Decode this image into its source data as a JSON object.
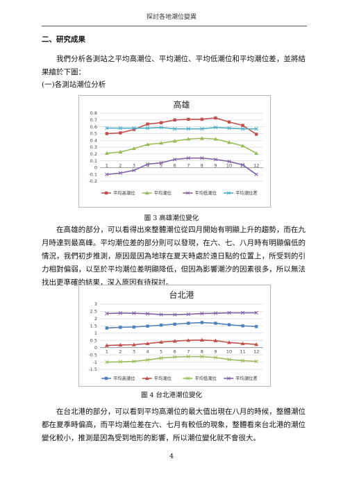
{
  "header": {
    "title": "探討各地潮位變異"
  },
  "section": {
    "heading": "二、研究成果"
  },
  "intro": {
    "text": "我們分析各測站之平均高潮位、平均潮位、平均低潮位和平均潮位差，並將結果繪於下圖："
  },
  "subsection": {
    "heading": "(一)各測站潮位分析"
  },
  "figures": [
    {
      "caption": "圖 3  高雄潮位變化"
    },
    {
      "caption": "圖 4  台北港潮位變化"
    }
  ],
  "paragraphs": [
    "在高雄的部分，可以看得出來整體潮位從四月開始有明顯上升的趨勢，而在九月時達到最高峰。平均潮位差的部分則可以發現，在六、七、八月時有明顯偏低的情況，我們初步推測，原因是因為地球在夏天時處於遠日點的位置上，所受到的引力相對偏弱，以至於平均潮位差明顯降低，但因為影響潮汐的因素很多，所以無法找出更準確的結果，深入原因有待探討。",
    "在台北港的部分，可以看到平均高潮位的最大值出現在八月的時候，整體潮位都在夏季時偏高，而平均潮位差在六、七月有較低的現象，整體看來台北港的潮位變化較小，推測是因為受到地形的影響，所以潮位變化就不會很大。"
  ],
  "page_number": "4",
  "colors": {
    "high": "#c0504d",
    "mean": "#9bbb59",
    "low": "#8064a2",
    "range": "#4bacc6",
    "range2": "#7e60a2",
    "high2": "#4f81bd"
  },
  "chart_data": [
    {
      "type": "line",
      "title": "高雄",
      "categories": [
        "1",
        "2",
        "3",
        "4",
        "5",
        "6",
        "7",
        "8",
        "9",
        "10",
        "11",
        "12"
      ],
      "ylim": [
        -0.2,
        0.8
      ],
      "yticks": [
        "0.8",
        "0.7",
        "0.6",
        "0.5",
        "0.4",
        "0.3",
        "0.2",
        "0.1",
        "0",
        "-0.1",
        "-0.2"
      ],
      "grid": true,
      "legend_position": "bottom",
      "series": [
        {
          "name": "平均高潮位",
          "color": "#c0504d",
          "marker": "square",
          "values": [
            0.5,
            0.51,
            0.56,
            0.64,
            0.66,
            0.7,
            0.71,
            0.71,
            0.73,
            0.67,
            0.62,
            0.49
          ]
        },
        {
          "name": "平均潮位",
          "color": "#9bbb59",
          "marker": "triangle",
          "values": [
            0.21,
            0.23,
            0.28,
            0.34,
            0.36,
            0.39,
            0.42,
            0.43,
            0.42,
            0.37,
            0.32,
            0.21
          ]
        },
        {
          "name": "平均低潮位",
          "color": "#8064a2",
          "marker": "x",
          "values": [
            -0.1,
            -0.08,
            -0.04,
            0.05,
            0.07,
            0.12,
            0.14,
            0.14,
            0.12,
            0.09,
            0.04,
            -0.1
          ]
        },
        {
          "name": "平均潮位差",
          "color": "#4bacc6",
          "marker": "x",
          "values": [
            0.58,
            0.58,
            0.58,
            0.58,
            0.59,
            0.57,
            0.57,
            0.57,
            0.59,
            0.58,
            0.57,
            0.57
          ]
        }
      ]
    },
    {
      "type": "line",
      "title": "台北港",
      "categories": [
        "1",
        "2",
        "3",
        "4",
        "5",
        "6",
        "7",
        "8",
        "9",
        "10",
        "11",
        "12"
      ],
      "ylim": [
        -1.5,
        3
      ],
      "yticks": [
        "3",
        "2.5",
        "2",
        "1.5",
        "1",
        "0.5",
        "0",
        "-0.5",
        "-1",
        "-1.5"
      ],
      "grid": true,
      "legend_position": "bottom",
      "series": [
        {
          "name": "平均高潮位",
          "color": "#4f81bd",
          "marker": "square",
          "values": [
            1.35,
            1.4,
            1.42,
            1.48,
            1.55,
            1.62,
            1.68,
            1.73,
            1.68,
            1.58,
            1.5,
            1.45
          ]
        },
        {
          "name": "平均潮位",
          "color": "#c0504d",
          "marker": "triangle",
          "values": [
            0.15,
            0.18,
            0.2,
            0.28,
            0.38,
            0.45,
            0.5,
            0.52,
            0.48,
            0.35,
            0.28,
            0.22
          ]
        },
        {
          "name": "平均低潮位",
          "color": "#9bbb59",
          "marker": "x",
          "values": [
            -1.0,
            -0.98,
            -0.95,
            -0.85,
            -0.72,
            -0.65,
            -0.62,
            -0.62,
            -0.68,
            -0.82,
            -0.9,
            -0.95
          ]
        },
        {
          "name": "平均潮位差",
          "color": "#7e60a2",
          "marker": "x",
          "values": [
            2.35,
            2.38,
            2.37,
            2.34,
            2.28,
            2.27,
            2.3,
            2.35,
            2.37,
            2.4,
            2.4,
            2.4
          ]
        }
      ]
    }
  ]
}
